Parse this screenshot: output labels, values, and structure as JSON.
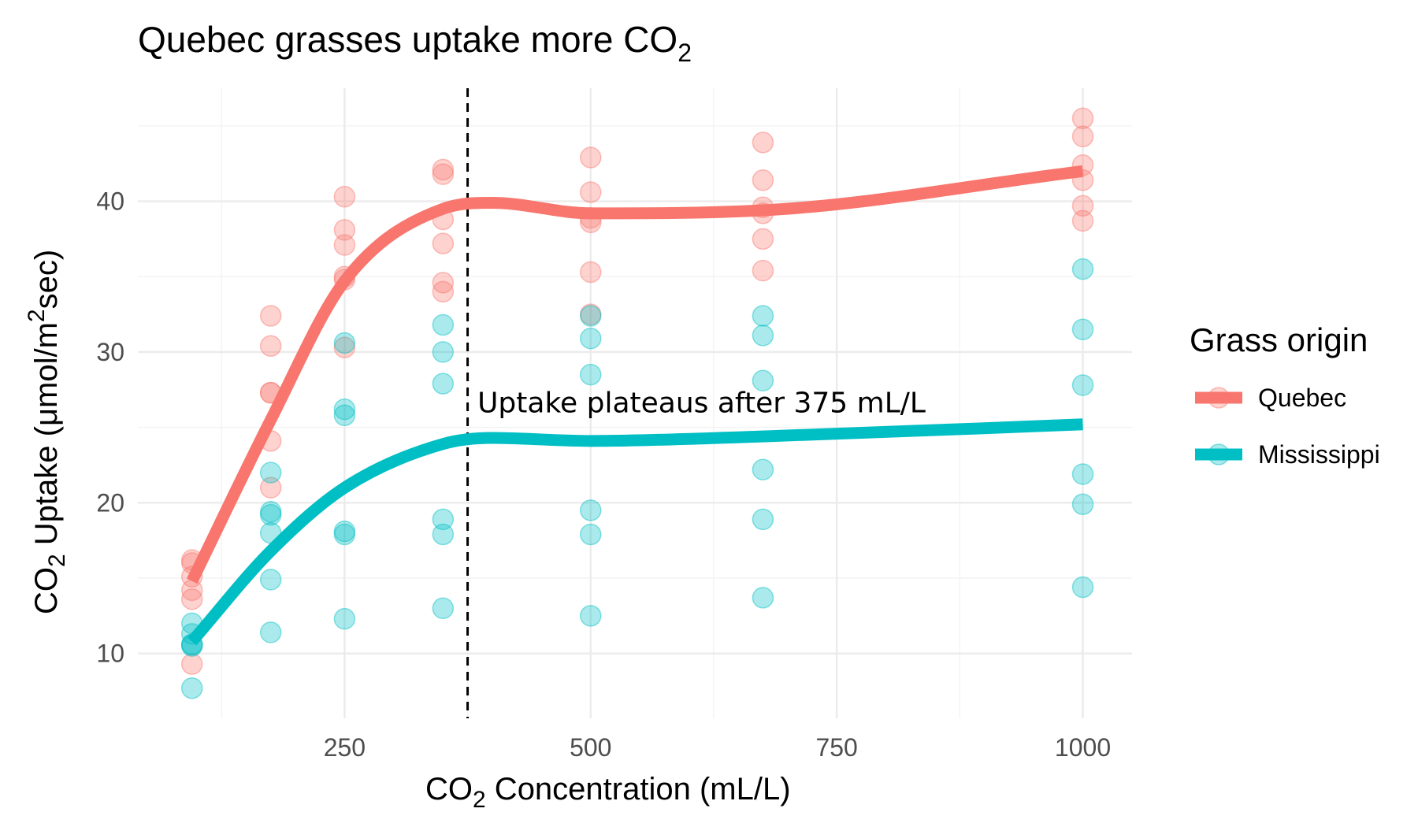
{
  "chart_data": {
    "type": "scatter",
    "title": "Quebec grasses uptake more CO",
    "title_sub": "2",
    "xlabel": "CO",
    "xlabel_sub": "2",
    "xlabel_rest": " Concentration (mL/L)",
    "ylabel": "CO",
    "ylabel_sub": "2",
    "ylabel_mid": " Uptake (μmol/m",
    "ylabel_sup": "2",
    "ylabel_rest": "sec)",
    "xlim": [
      40,
      1050
    ],
    "ylim": [
      5.7,
      47.5
    ],
    "x_ticks": [
      250,
      500,
      750,
      1000
    ],
    "x_minor_ticks": [
      125,
      375,
      625,
      875
    ],
    "y_ticks": [
      10,
      20,
      30,
      40
    ],
    "y_minor_ticks": [
      15,
      25,
      35,
      45
    ],
    "grid": true,
    "legend": {
      "title": "Grass origin",
      "position": "right",
      "entries": [
        "Quebec",
        "Mississippi"
      ]
    },
    "vline": {
      "x": 375,
      "style": "dashed"
    },
    "annotation": {
      "text": "Uptake plateaus after 375 mL/L",
      "x": 385,
      "y": 26
    },
    "series": [
      {
        "name": "Quebec",
        "color": "#F8766D",
        "points": [
          [
            95,
            16.0
          ],
          [
            95,
            13.6
          ],
          [
            95,
            16.2
          ],
          [
            95,
            14.2
          ],
          [
            95,
            15.1
          ],
          [
            95,
            9.3
          ],
          [
            175,
            30.4
          ],
          [
            175,
            27.3
          ],
          [
            175,
            32.4
          ],
          [
            175,
            24.1
          ],
          [
            175,
            27.3
          ],
          [
            175,
            21.0
          ],
          [
            250,
            34.8
          ],
          [
            250,
            37.1
          ],
          [
            250,
            40.3
          ],
          [
            250,
            30.3
          ],
          [
            250,
            35.0
          ],
          [
            250,
            38.1
          ],
          [
            350,
            37.2
          ],
          [
            350,
            41.8
          ],
          [
            350,
            42.1
          ],
          [
            350,
            34.6
          ],
          [
            350,
            38.8
          ],
          [
            350,
            34.0
          ],
          [
            500,
            35.3
          ],
          [
            500,
            40.6
          ],
          [
            500,
            42.9
          ],
          [
            500,
            32.5
          ],
          [
            500,
            38.6
          ],
          [
            500,
            38.9
          ],
          [
            675,
            39.2
          ],
          [
            675,
            41.4
          ],
          [
            675,
            43.9
          ],
          [
            675,
            35.4
          ],
          [
            675,
            37.5
          ],
          [
            675,
            39.6
          ],
          [
            1000,
            39.7
          ],
          [
            1000,
            44.3
          ],
          [
            1000,
            45.5
          ],
          [
            1000,
            38.7
          ],
          [
            1000,
            42.4
          ],
          [
            1000,
            41.4
          ]
        ],
        "smooth": [
          [
            95,
            14.8
          ],
          [
            175,
            25.5
          ],
          [
            250,
            34.7
          ],
          [
            350,
            39.5
          ],
          [
            400,
            39.9
          ],
          [
            500,
            39.2
          ],
          [
            675,
            39.4
          ],
          [
            1000,
            42.0
          ]
        ]
      },
      {
        "name": "Mississippi",
        "color": "#00BFC4",
        "points": [
          [
            95,
            10.6
          ],
          [
            95,
            12.0
          ],
          [
            95,
            11.3
          ],
          [
            95,
            10.5
          ],
          [
            95,
            10.6
          ],
          [
            95,
            7.7
          ],
          [
            175,
            19.2
          ],
          [
            175,
            22.0
          ],
          [
            175,
            19.4
          ],
          [
            175,
            14.9
          ],
          [
            175,
            18.0
          ],
          [
            175,
            11.4
          ],
          [
            250,
            26.2
          ],
          [
            250,
            30.6
          ],
          [
            250,
            25.8
          ],
          [
            250,
            18.1
          ],
          [
            250,
            17.9
          ],
          [
            250,
            12.3
          ],
          [
            350,
            30.0
          ],
          [
            350,
            31.8
          ],
          [
            350,
            27.9
          ],
          [
            350,
            18.9
          ],
          [
            350,
            17.9
          ],
          [
            350,
            13.0
          ],
          [
            500,
            30.9
          ],
          [
            500,
            32.4
          ],
          [
            500,
            28.5
          ],
          [
            500,
            19.5
          ],
          [
            500,
            17.9
          ],
          [
            500,
            12.5
          ],
          [
            675,
            32.4
          ],
          [
            675,
            31.1
          ],
          [
            675,
            28.1
          ],
          [
            675,
            22.2
          ],
          [
            675,
            18.9
          ],
          [
            675,
            13.7
          ],
          [
            1000,
            35.5
          ],
          [
            1000,
            31.5
          ],
          [
            1000,
            27.8
          ],
          [
            1000,
            21.9
          ],
          [
            1000,
            19.9
          ],
          [
            1000,
            14.4
          ]
        ],
        "smooth": [
          [
            95,
            10.8
          ],
          [
            175,
            16.8
          ],
          [
            250,
            21.0
          ],
          [
            350,
            23.9
          ],
          [
            400,
            24.3
          ],
          [
            500,
            24.1
          ],
          [
            675,
            24.4
          ],
          [
            1000,
            25.2
          ]
        ]
      }
    ]
  }
}
